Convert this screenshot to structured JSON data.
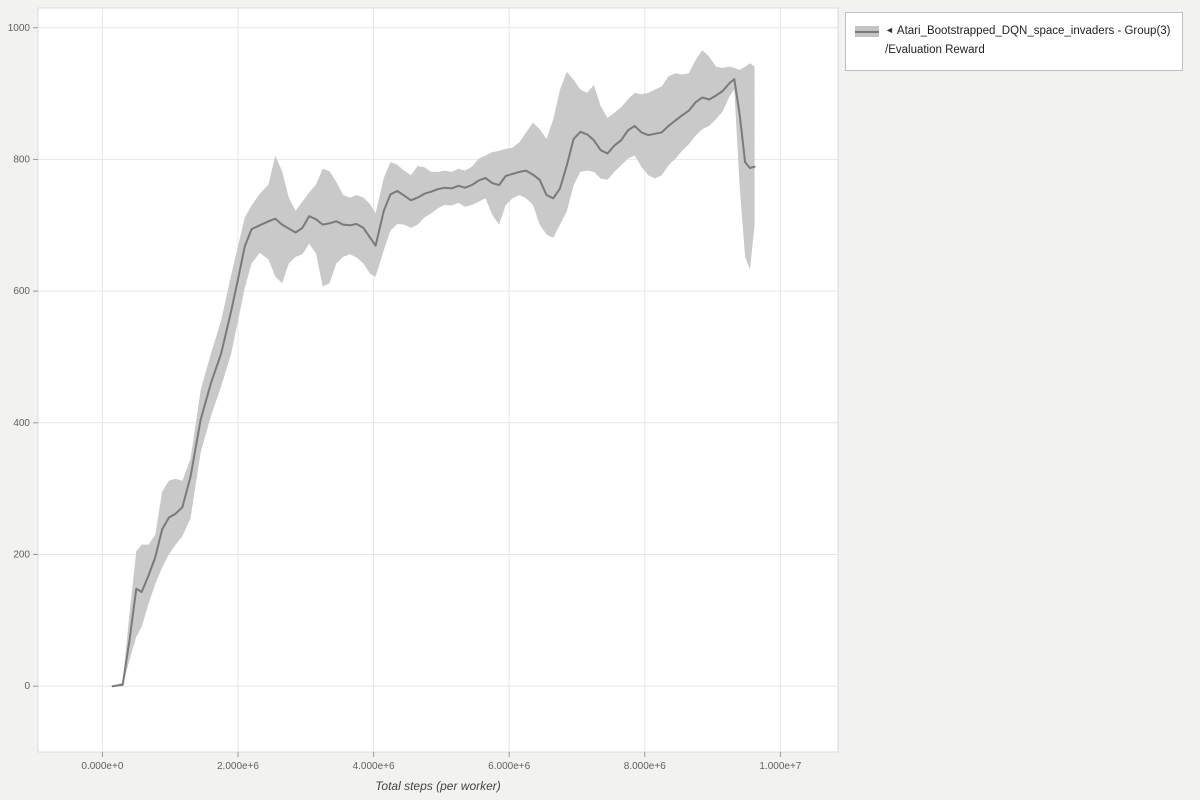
{
  "page": {
    "background": "#f2f3f1"
  },
  "legend": {
    "collapse_icon": "◄",
    "series_name": "Atari_Bootstrapped_DQN_space_invaders - Group(3)",
    "series_subtitle": "/Evaluation Reward"
  },
  "chart_data": {
    "type": "line",
    "title": "",
    "xlabel": "Total steps (per worker)",
    "ylabel": "",
    "grid": true,
    "legend_position": "top-right",
    "plot_bg": "#ffffff",
    "grid_color": "#e6e6e6",
    "border_color": "#dcdcdc",
    "tick_color": "#9a9a9a",
    "xlim": [
      -950000,
      10850000
    ],
    "ylim": [
      -100,
      1030
    ],
    "x_ticks": {
      "values": [
        0,
        2000000,
        4000000,
        6000000,
        8000000,
        10000000
      ],
      "labels": [
        "0.000e+0",
        "2.000e+6",
        "4.000e+6",
        "6.000e+6",
        "8.000e+6",
        "1.000e+7"
      ]
    },
    "y_ticks": {
      "values": [
        0,
        200,
        400,
        600,
        800,
        1000
      ],
      "labels": [
        "0",
        "200",
        "400",
        "600",
        "800",
        "1000"
      ]
    },
    "series": [
      {
        "name": "Atari_Bootstrapped_DQN_space_invaders - Group(3)/Evaluation Reward",
        "line_color": "#7a7a7a",
        "line_width": 2,
        "band_color": "#c9c9c9",
        "band_opacity": 1,
        "x": [
          150000,
          300000,
          400000,
          500000,
          580000,
          680000,
          780000,
          880000,
          980000,
          1080000,
          1180000,
          1300000,
          1450000,
          1600000,
          1750000,
          1900000,
          2000000,
          2100000,
          2200000,
          2320000,
          2450000,
          2550000,
          2650000,
          2750000,
          2850000,
          2950000,
          3050000,
          3150000,
          3250000,
          3350000,
          3450000,
          3550000,
          3650000,
          3750000,
          3850000,
          3950000,
          4030000,
          4150000,
          4250000,
          4350000,
          4450000,
          4550000,
          4650000,
          4750000,
          4850000,
          4950000,
          5050000,
          5150000,
          5250000,
          5350000,
          5450000,
          5550000,
          5650000,
          5750000,
          5850000,
          5950000,
          6050000,
          6150000,
          6250000,
          6350000,
          6450000,
          6550000,
          6650000,
          6750000,
          6850000,
          6950000,
          7050000,
          7150000,
          7250000,
          7350000,
          7450000,
          7550000,
          7650000,
          7750000,
          7850000,
          7950000,
          8050000,
          8150000,
          8250000,
          8350000,
          8450000,
          8550000,
          8650000,
          8750000,
          8850000,
          8950000,
          9050000,
          9150000,
          9250000,
          9320000,
          9400000,
          9480000,
          9550000,
          9620000
        ],
        "mean": [
          0,
          2,
          70,
          148,
          143,
          168,
          196,
          238,
          256,
          262,
          272,
          318,
          405,
          460,
          505,
          570,
          618,
          668,
          694,
          700,
          706,
          710,
          701,
          695,
          689,
          696,
          714,
          709,
          701,
          703,
          706,
          701,
          700,
          702,
          696,
          681,
          669,
          722,
          747,
          752,
          745,
          738,
          742,
          748,
          751,
          755,
          757,
          756,
          760,
          757,
          761,
          768,
          772,
          764,
          761,
          775,
          778,
          781,
          783,
          777,
          769,
          746,
          741,
          756,
          791,
          831,
          842,
          838,
          829,
          814,
          809,
          821,
          829,
          844,
          851,
          841,
          837,
          839,
          841,
          851,
          859,
          867,
          874,
          887,
          894,
          891,
          897,
          904,
          916,
          922,
          868,
          796,
          787,
          789
        ],
        "lower": [
          0,
          0,
          40,
          75,
          90,
          125,
          155,
          180,
          200,
          215,
          228,
          255,
          355,
          410,
          455,
          505,
          555,
          605,
          642,
          658,
          648,
          622,
          612,
          642,
          652,
          656,
          672,
          657,
          607,
          612,
          642,
          652,
          656,
          651,
          642,
          626,
          622,
          662,
          692,
          702,
          701,
          696,
          701,
          712,
          718,
          726,
          731,
          730,
          734,
          728,
          731,
          736,
          741,
          716,
          701,
          731,
          741,
          746,
          741,
          731,
          701,
          686,
          681,
          701,
          721,
          761,
          781,
          783,
          781,
          771,
          769,
          781,
          791,
          801,
          806,
          789,
          776,
          771,
          776,
          791,
          801,
          813,
          823,
          836,
          846,
          851,
          861,
          873,
          896,
          906,
          758,
          652,
          633,
          700
        ],
        "upper": [
          0,
          6,
          110,
          205,
          215,
          215,
          230,
          295,
          312,
          315,
          312,
          345,
          450,
          505,
          555,
          625,
          668,
          712,
          730,
          748,
          762,
          806,
          782,
          742,
          722,
          736,
          750,
          762,
          786,
          782,
          766,
          746,
          742,
          746,
          742,
          732,
          718,
          772,
          796,
          792,
          783,
          776,
          790,
          788,
          781,
          781,
          783,
          781,
          786,
          783,
          789,
          801,
          806,
          811,
          813,
          816,
          818,
          826,
          841,
          856,
          846,
          831,
          861,
          906,
          933,
          921,
          906,
          901,
          913,
          881,
          863,
          871,
          879,
          891,
          901,
          899,
          901,
          906,
          911,
          926,
          931,
          929,
          931,
          951,
          966,
          956,
          941,
          939,
          941,
          939,
          936,
          941,
          946,
          941
        ]
      }
    ]
  }
}
